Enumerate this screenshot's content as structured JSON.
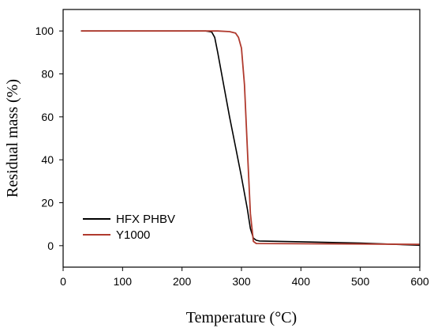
{
  "chart_data": {
    "type": "line",
    "xlabel": "Temperature (°C)",
    "ylabel": "Residual mass (%)",
    "xlim": [
      0,
      600
    ],
    "ylim": [
      -10,
      110
    ],
    "xticks": [
      0,
      100,
      200,
      300,
      400,
      500,
      600
    ],
    "yticks": [
      0,
      20,
      40,
      60,
      80,
      100
    ],
    "grid": false,
    "legend": "bottom-left",
    "series": [
      {
        "name": "HFX PHBV",
        "color": "#000000",
        "x": [
          30,
          100,
          200,
          240,
          250,
          255,
          260,
          270,
          280,
          290,
          300,
          310,
          315,
          320,
          325,
          330,
          400,
          500,
          600
        ],
        "y": [
          100,
          100,
          100,
          100,
          99.5,
          97,
          90,
          75,
          60,
          46,
          32,
          17,
          8,
          3.5,
          2.5,
          2.2,
          1.8,
          1.2,
          0.2
        ]
      },
      {
        "name": "Y1000",
        "color": "#b03a2e",
        "x": [
          30,
          100,
          200,
          260,
          280,
          290,
          295,
          300,
          305,
          310,
          315,
          320,
          325,
          400,
          500,
          600
        ],
        "y": [
          100,
          100,
          100,
          100,
          99.7,
          99,
          97,
          92,
          75,
          45,
          15,
          2,
          1,
          0.9,
          0.8,
          0.6
        ]
      }
    ]
  }
}
